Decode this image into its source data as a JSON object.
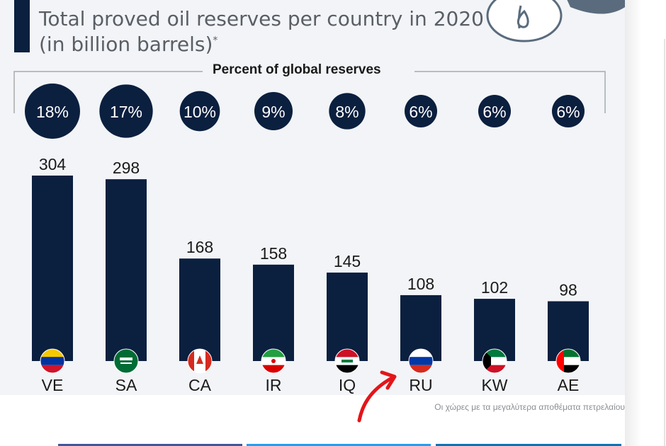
{
  "chart_data": {
    "type": "bar",
    "title_line1": "Total proved oil reserves per country in 2020",
    "title_line2": "(in billion barrels)",
    "title_mark": "*",
    "percent_heading": "Percent of global reserves",
    "categories": [
      "VE",
      "SA",
      "CA",
      "IR",
      "IQ",
      "RU",
      "KW",
      "AE"
    ],
    "values": [
      304,
      298,
      168,
      158,
      145,
      108,
      102,
      98
    ],
    "percent_labels": [
      "18%",
      "17%",
      "10%",
      "9%",
      "8%",
      "6%",
      "6%",
      "6%"
    ],
    "percent_values": [
      18,
      17,
      10,
      9,
      8,
      6,
      6,
      6
    ],
    "ylim": [
      0,
      304
    ],
    "grid": false,
    "legend": "none",
    "colors": {
      "bar": "#0b1f3f",
      "background": "#f2f4f7",
      "text": "#1a1a1a"
    },
    "flags": [
      "venezuela-flag-icon",
      "saudi-arabia-flag-icon",
      "canada-flag-icon",
      "iran-flag-icon",
      "iraq-flag-icon",
      "russia-flag-icon",
      "kuwait-flag-icon",
      "uae-flag-icon"
    ]
  },
  "caption": "Οι χώρες με τα μεγαλύτερα αποθέματα πετρελαίου",
  "annotation": {
    "icon": "red-arrow-icon",
    "color": "#e3151a"
  }
}
